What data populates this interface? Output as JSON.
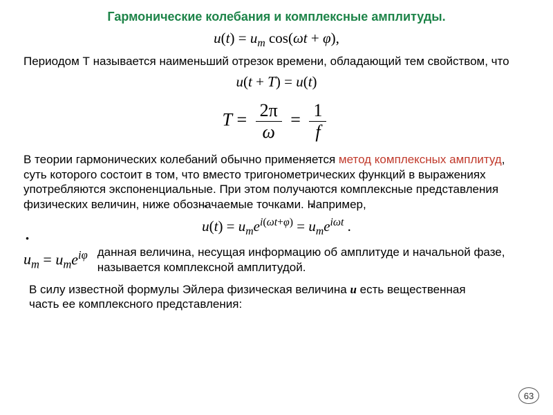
{
  "title": "Гармонические колебания и комплексные амплитуды.",
  "formula1": "u(t) = uₘ cos(ωt + φ),",
  "para1": "Периодом Т называется наименьший отрезок времени, обладающий тем свойством, что",
  "formula2": "u(t + T) = u(t)",
  "formula3_lhs": "T =",
  "formula3_f1_num": "2π",
  "formula3_f1_den": "ω",
  "formula3_eq": "=",
  "formula3_f2_num": "1",
  "formula3_f2_den": "f",
  "para2_a": "В теории гармонических колебаний обычно применяется ",
  "para2_method": "метод комплексных амплитуд",
  "para2_b": ", суть которого состоит в том, что вместо триго­нометрических функций в выражениях употребляются экспоненциаль­ные. При этом получаются комплексные представления физических величин, ниже обозначаемые точками. Например,",
  "formula4_a": "u",
  "formula4_b": "(t) = u",
  "formula4_m": "m",
  "formula4_c": "e",
  "formula4_exp1": "i(ωt+φ)",
  "formula4_d": " = ",
  "formula4_e": "u",
  "formula4_m2": "m",
  "formula4_f": "e",
  "formula4_exp2": "iωt",
  "formula4_dot": " .",
  "formula5_a": "u",
  "formula5_m": "m",
  "formula5_b": " = u",
  "formula5_m2": "m",
  "formula5_c": "e",
  "formula5_exp": "iφ",
  "para3": "данная величина, несущая информацию об амплитуде и начальной фазе, называется комплексной амплитудой.",
  "para4_a": "В силу известной формулы Эйлера физическая величина ",
  "para4_u": "u",
  "para4_b": " есть вещественная часть ее комплексного представления:",
  "pagenum": "63",
  "colors": {
    "title": "#1e8449",
    "method": "#c0392b",
    "text": "#000000",
    "bg": "#ffffff"
  },
  "fonts": {
    "body": "Arial",
    "math": "Times New Roman",
    "title_size": 18,
    "body_size": 17,
    "formula_size": 21,
    "formula_big": 26
  }
}
